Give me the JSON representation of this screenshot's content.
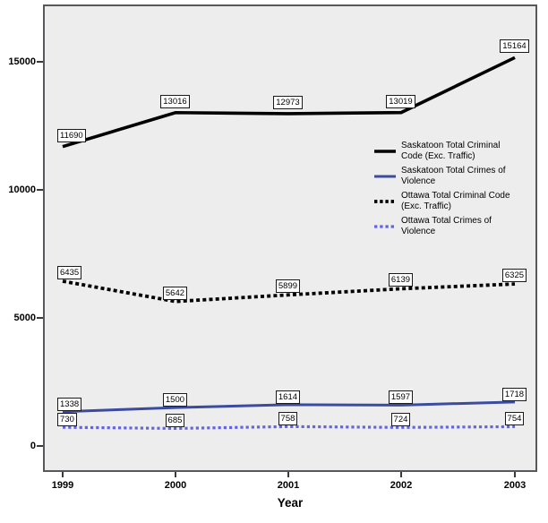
{
  "chart_data": {
    "type": "line",
    "title": "",
    "xlabel": "Year",
    "ylabel": "",
    "categories": [
      "1999",
      "2000",
      "2001",
      "2002",
      "2003"
    ],
    "yticks": [
      0,
      5000,
      10000,
      15000
    ],
    "ylim": [
      0,
      17300
    ],
    "grid": false,
    "legend_position": "inside-right",
    "point_labels_visible": true,
    "series": [
      {
        "name": "Saskatoon Total Criminal Code (Exc. Traffic)",
        "legend_lines": [
          "Saskatoon Total Criminal",
          "Code (Exc. Traffic)"
        ],
        "color": "#000000",
        "line_style": "solid",
        "values": [
          11690,
          13016,
          12973,
          13019,
          15164
        ]
      },
      {
        "name": "Saskatoon Total Crimes of Violence",
        "legend_lines": [
          "Saskatoon Total Crimes of",
          "Violence"
        ],
        "color": "#3a4ba0",
        "line_style": "solid",
        "values": [
          1338,
          1500,
          1614,
          1597,
          1718
        ]
      },
      {
        "name": "Ottawa Total Criminal Code (Exc. Traffic)",
        "legend_lines": [
          "Ottawa Total Criminal Code",
          "(Exc. Traffic)"
        ],
        "color": "#000000",
        "line_style": "dotted",
        "values": [
          6435,
          5642,
          5899,
          6139,
          6325
        ]
      },
      {
        "name": "Ottawa Total Crimes of Violence",
        "legend_lines": [
          "Ottawa Total Crimes of",
          "Violence"
        ],
        "color": "#6165e2",
        "line_style": "dotted",
        "values": [
          730,
          685,
          758,
          724,
          754
        ]
      }
    ],
    "colors": {
      "plot_background": "#ededee",
      "frame": "#58585a",
      "label_box_background": "#ffffff",
      "label_box_border": "#1a1a1a"
    }
  }
}
